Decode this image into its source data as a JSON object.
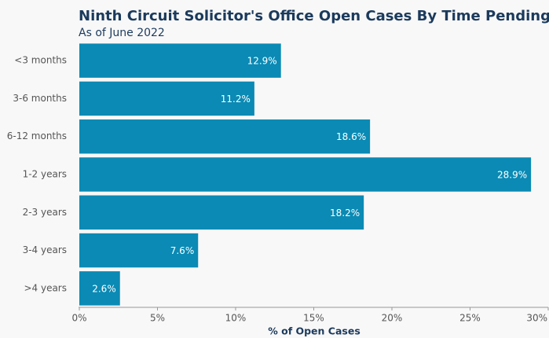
{
  "chart_data": {
    "type": "hbar",
    "title": "Ninth Circuit Solicitor's Office Open Cases By Time Pending",
    "subtitle": "As of June 2022",
    "xlabel": "% of Open Cases",
    "categories": [
      "<3 months",
      "3-6 months",
      "6-12 months",
      "1-2 years",
      "2-3 years",
      "3-4 years",
      ">4 years"
    ],
    "values": [
      12.9,
      11.2,
      18.6,
      28.9,
      18.2,
      7.6,
      2.6
    ],
    "value_labels": [
      "12.9%",
      "11.2%",
      "18.6%",
      "28.9%",
      "18.2%",
      "7.6%",
      "2.6%"
    ],
    "color": "#0a8ab4",
    "xlim": [
      0,
      30
    ],
    "xticks": [
      {
        "value": 0,
        "label": "0%"
      },
      {
        "value": 5,
        "label": "5%"
      },
      {
        "value": 10,
        "label": "10%"
      },
      {
        "value": 15,
        "label": "15%"
      },
      {
        "value": 20,
        "label": "20%"
      },
      {
        "value": 25,
        "label": "25%"
      },
      {
        "value": 30,
        "label": "30%"
      }
    ],
    "grid": false
  }
}
